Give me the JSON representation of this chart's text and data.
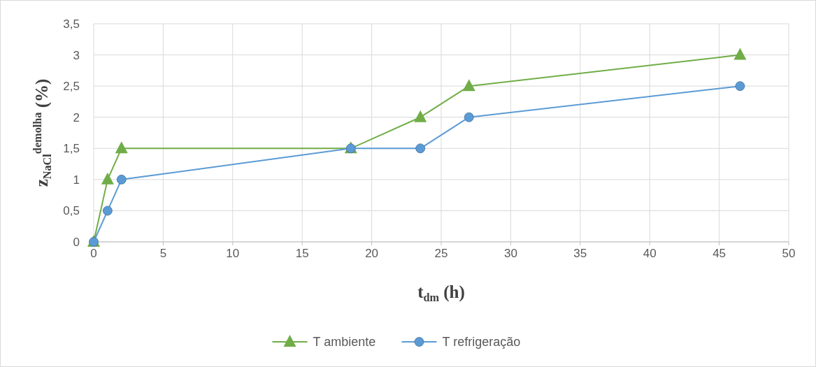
{
  "chart_data": {
    "type": "line",
    "xlabel": "t$_{dm}$ (h)",
    "ylabel": "z$_{NaCl}$$^{demolha}$ (%)",
    "x": [
      0,
      1,
      2,
      18.5,
      23.5,
      27,
      46.5
    ],
    "series": [
      {
        "name": "T ambiente",
        "color": "#70ad47",
        "marker": "triangle",
        "values": [
          0,
          1,
          1.5,
          1.5,
          2,
          2.5,
          3
        ]
      },
      {
        "name": "T refrigeração",
        "color": "#5b9bd5",
        "marker": "circle",
        "values": [
          0,
          0.5,
          1,
          1.5,
          1.5,
          2,
          2.5
        ]
      }
    ],
    "xlim": [
      0,
      50
    ],
    "xticks": [
      0,
      5,
      10,
      15,
      20,
      25,
      30,
      35,
      40,
      45,
      50
    ],
    "ylim": [
      0,
      3.5
    ],
    "yticks": [
      0,
      {
        "value": 0.5,
        "label": "0,5"
      },
      1,
      {
        "value": 1.5,
        "label": "1,5"
      },
      2,
      {
        "value": 2.5,
        "label": "2,5"
      },
      3,
      {
        "value": 3.5,
        "label": "3,5"
      }
    ],
    "grid": true,
    "legend": "bottom",
    "line_style": "solid"
  }
}
